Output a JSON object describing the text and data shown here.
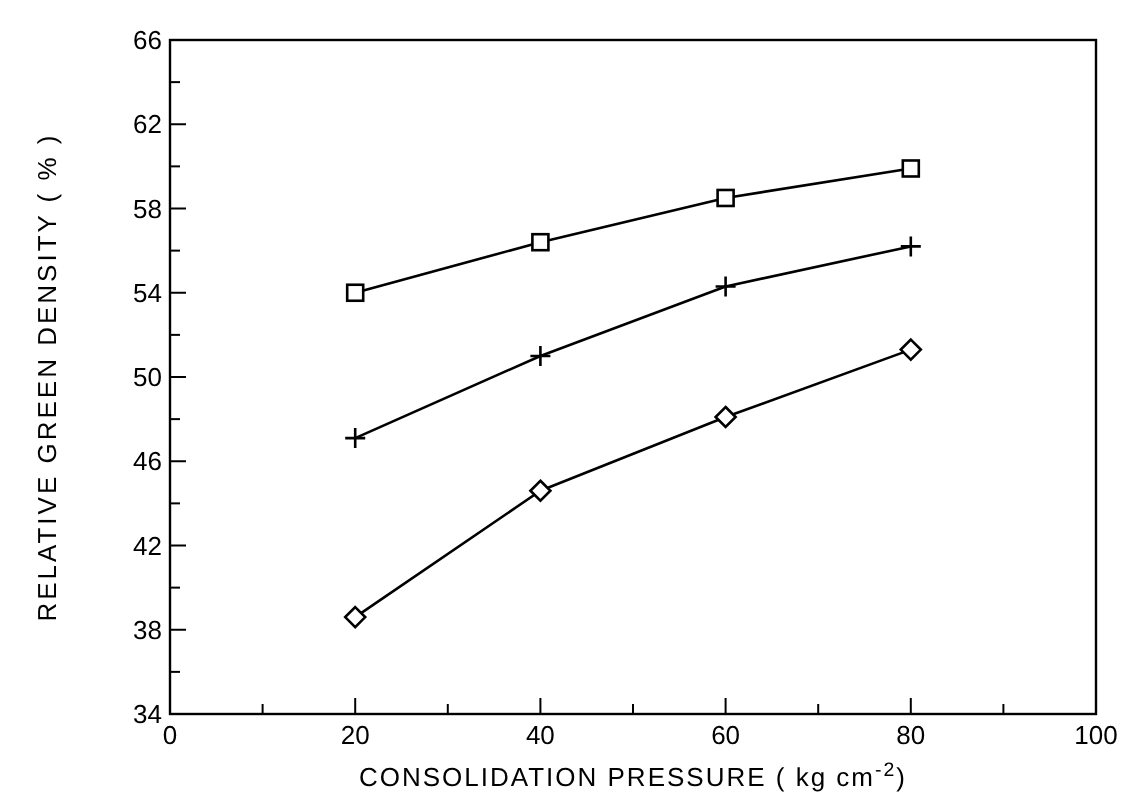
{
  "chart_data": {
    "type": "line",
    "xlabel": "CONSOLIDATION PRESSURE ( kg cm$^{-2}$)",
    "ylabel": "RELATIVE GREEN DENSITY  ( % )",
    "x": [
      20,
      40,
      60,
      80
    ],
    "series": [
      {
        "color": "#000000",
        "marker": "square",
        "values": [
          54,
          56.4,
          58.5,
          59.9
        ]
      },
      {
        "color": "#000000",
        "marker": "cross",
        "values": [
          47.1,
          51,
          54.3,
          56.2
        ]
      },
      {
        "color": "#000000",
        "marker": "diamond",
        "values": [
          38.6,
          44.6,
          48.1,
          51.3
        ]
      }
    ],
    "xlim": [
      0,
      100
    ],
    "xticks": [
      0,
      {
        "value": 10,
        "label": null
      },
      20,
      {
        "value": 30,
        "label": null
      },
      40,
      {
        "value": 50,
        "label": null
      },
      60,
      {
        "value": 70,
        "label": null
      },
      80,
      {
        "value": 90,
        "label": null
      },
      100
    ],
    "ylim": [
      34,
      66
    ],
    "yticks": [
      34,
      {
        "value": 36,
        "label": null
      },
      38,
      {
        "value": 40,
        "label": null
      },
      42,
      {
        "value": 44,
        "label": null
      },
      46,
      {
        "value": 48,
        "label": null
      },
      50,
      {
        "value": 52,
        "label": null
      },
      54,
      {
        "value": 56,
        "label": null
      },
      58,
      {
        "value": 60,
        "label": null
      },
      62,
      {
        "value": 64,
        "label": null
      },
      66
    ],
    "grid": false,
    "line_style": "solid"
  }
}
